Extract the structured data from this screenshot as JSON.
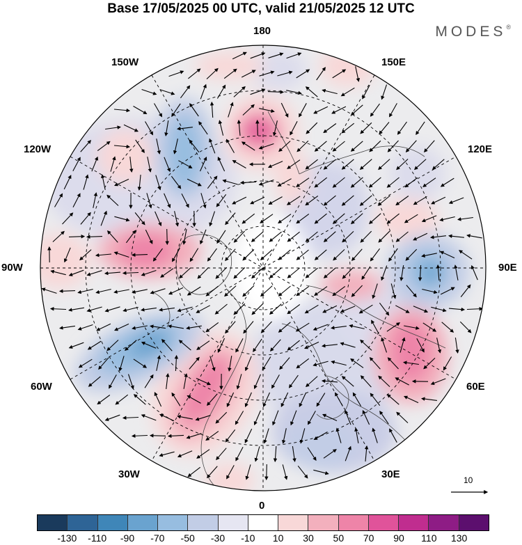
{
  "title": "Base 17/05/2025 00 UTC, valid 21/05/2025 12 UTC",
  "logo": {
    "text": "MODES",
    "mark": "®"
  },
  "longitude_labels": {
    "lon_180": "180",
    "lon_150e": "150E",
    "lon_120e": "120E",
    "lon_90e": "90E",
    "lon_60e": "60E",
    "lon_30e": "30E",
    "lon_0": "0",
    "lon_30w": "30W",
    "lon_60w": "60W",
    "lon_90w": "90W",
    "lon_120w": "120W",
    "lon_150w": "150W"
  },
  "vector_scale": {
    "label": "10"
  },
  "colorbar": {
    "colors": [
      "#1a3a5c",
      "#2e6496",
      "#3f86b8",
      "#6aa3cf",
      "#97bde0",
      "#c2cde6",
      "#e6e6f2",
      "#ffffff",
      "#f8d8d8",
      "#f3b0bd",
      "#ee84a8",
      "#e0539a",
      "#c02d8f",
      "#8e1c85",
      "#5c0f6e"
    ],
    "tick_labels": [
      "-130",
      "-110",
      "-90",
      "-70",
      "-50",
      "-30",
      "-10",
      "10",
      "30",
      "50",
      "70",
      "90",
      "110",
      "130"
    ]
  }
}
